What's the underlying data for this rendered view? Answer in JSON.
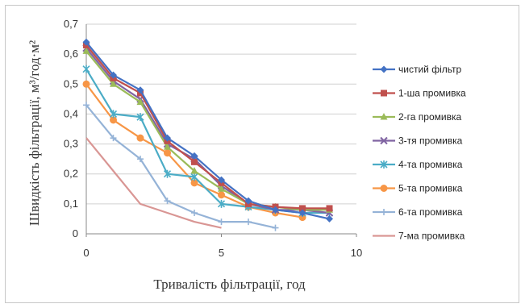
{
  "chart_data": {
    "type": "line",
    "title": "",
    "xlabel": "Тривалість фільтрації, год",
    "ylabel": "Швидкість фільтрації, м³/год·м²",
    "xlim": [
      0,
      10
    ],
    "ylim": [
      0,
      0.7
    ],
    "x_ticks": [
      "0",
      "5",
      "10"
    ],
    "y_ticks": [
      "0",
      "0,1",
      "0,2",
      "0,3",
      "0,4",
      "0,5",
      "0,6",
      "0,7"
    ],
    "grid": "horizontal",
    "legend": "right",
    "series": [
      {
        "name": "чистий фільтр",
        "color": "#4472c4",
        "marker": "diamond",
        "x": [
          0,
          1,
          2,
          3,
          4,
          5,
          6,
          7,
          8,
          9
        ],
        "y": [
          0.64,
          0.53,
          0.48,
          0.32,
          0.26,
          0.18,
          0.11,
          0.08,
          0.07,
          0.05
        ]
      },
      {
        "name": "1-ша промивка",
        "color": "#c0504d",
        "marker": "square",
        "x": [
          0,
          1,
          2,
          3,
          4,
          5,
          6,
          7,
          8,
          9
        ],
        "y": [
          0.63,
          0.52,
          0.47,
          0.31,
          0.24,
          0.17,
          0.1,
          0.09,
          0.085,
          0.085
        ]
      },
      {
        "name": "2-га промивка",
        "color": "#9bbb59",
        "marker": "triangle",
        "x": [
          0,
          1,
          2,
          3,
          4,
          5,
          6,
          7,
          8,
          9
        ],
        "y": [
          0.61,
          0.5,
          0.44,
          0.29,
          0.21,
          0.15,
          0.1,
          0.09,
          0.08,
          0.08
        ]
      },
      {
        "name": "3-тя промивка",
        "color": "#8064a2",
        "marker": "x",
        "x": [
          0,
          1,
          2,
          3,
          4,
          5,
          6,
          7,
          8,
          9
        ],
        "y": [
          0.62,
          0.51,
          0.45,
          0.3,
          0.25,
          0.16,
          0.1,
          0.08,
          0.08,
          0.07
        ]
      },
      {
        "name": "4-та промивка",
        "color": "#4bacc6",
        "marker": "star",
        "x": [
          0,
          1,
          2,
          3,
          4,
          5,
          6,
          7,
          8,
          9
        ],
        "y": [
          0.55,
          0.4,
          0.39,
          0.2,
          0.19,
          0.1,
          0.09,
          0.08,
          0.07,
          0.07
        ]
      },
      {
        "name": "5-та промивка",
        "color": "#f79646",
        "marker": "circle",
        "x": [
          0,
          1,
          2,
          3,
          4,
          5,
          6,
          7,
          8
        ],
        "y": [
          0.5,
          0.38,
          0.32,
          0.27,
          0.17,
          0.13,
          0.09,
          0.07,
          0.055
        ]
      },
      {
        "name": "6-та промивка",
        "color": "#95b3d7",
        "marker": "plus",
        "x": [
          0,
          1,
          2,
          3,
          4,
          5,
          6,
          7
        ],
        "y": [
          0.43,
          0.32,
          0.25,
          0.11,
          0.07,
          0.04,
          0.04,
          0.02
        ]
      },
      {
        "name": "7-ма промивка",
        "color": "#d99694",
        "marker": "dash",
        "x": [
          0,
          1,
          2,
          3,
          4,
          5
        ],
        "y": [
          0.32,
          0.21,
          0.1,
          0.07,
          0.04,
          0.02
        ]
      }
    ]
  }
}
